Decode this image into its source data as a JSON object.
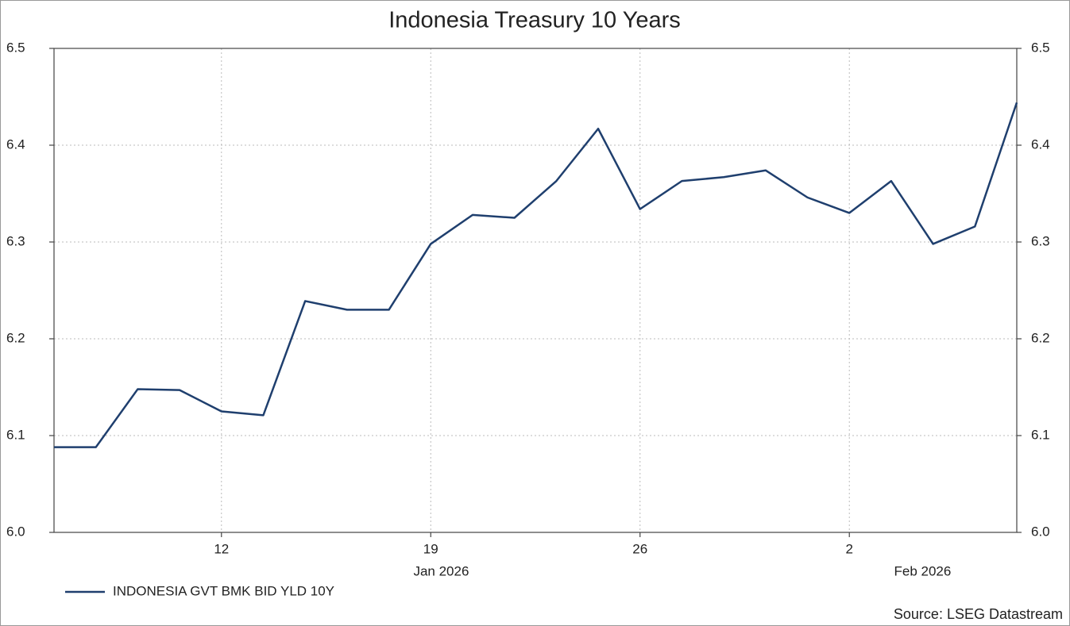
{
  "chart_data": {
    "type": "line",
    "title": "Indonesia Treasury 10 Years",
    "source": "Source: LSEG Datastream",
    "x": [
      "2026-01-06",
      "2026-01-07",
      "2026-01-08",
      "2026-01-09",
      "2026-01-12",
      "2026-01-13",
      "2026-01-14",
      "2026-01-15",
      "2026-01-16",
      "2026-01-19",
      "2026-01-20",
      "2026-01-21",
      "2026-01-22",
      "2026-01-23",
      "2026-01-26",
      "2026-01-27",
      "2026-01-28",
      "2026-01-29",
      "2026-01-30",
      "2026-02-02",
      "2026-02-03",
      "2026-02-04",
      "2026-02-05",
      "2026-02-06"
    ],
    "series": [
      {
        "name": "INDONESIA GVT BMK BID YLD 10Y",
        "color": "#1f3f6e",
        "values": [
          6.088,
          6.088,
          6.148,
          6.147,
          6.125,
          6.121,
          6.239,
          6.23,
          6.23,
          6.298,
          6.328,
          6.325,
          6.363,
          6.417,
          6.334,
          6.363,
          6.367,
          6.374,
          6.346,
          6.33,
          6.363,
          6.298,
          6.316,
          6.444
        ]
      }
    ],
    "xticks": [
      {
        "value": "2026-01-12",
        "label": "12"
      },
      {
        "value": "2026-01-19",
        "label": "19"
      },
      {
        "value": "2026-01-26",
        "label": "26"
      },
      {
        "value": "2026-02-02",
        "label": "2"
      }
    ],
    "month_labels": [
      {
        "value": "2026-01",
        "label": "Jan 2026"
      },
      {
        "value": "2026-02",
        "label": "Feb 2026"
      }
    ],
    "ylim": [
      6.0,
      6.5
    ],
    "yticks": [
      {
        "value": 6.0,
        "label": "6.0"
      },
      {
        "value": 6.1,
        "label": "6.1"
      },
      {
        "value": 6.2,
        "label": "6.2"
      },
      {
        "value": 6.3,
        "label": "6.3"
      },
      {
        "value": 6.4,
        "label": "6.4"
      },
      {
        "value": 6.5,
        "label": "6.5"
      }
    ],
    "grid": true,
    "legend": "bottom-left"
  }
}
